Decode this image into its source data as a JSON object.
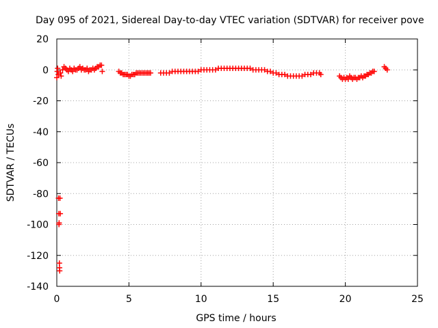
{
  "chart_data": {
    "type": "scatter",
    "title": "Day 095 of 2021, Sidereal Day-to-day VTEC variation (SDTVAR) for receiver pove",
    "xlabel": "GPS time / hours",
    "ylabel": "SDTVAR / TECUs",
    "xlim": [
      0,
      25
    ],
    "ylim": [
      -140,
      20
    ],
    "xticks": [
      0,
      5,
      10,
      15,
      20,
      25
    ],
    "yticks": [
      -140,
      -120,
      -100,
      -80,
      -60,
      -40,
      -20,
      0,
      20
    ],
    "grid": true,
    "marker": "+",
    "colors": {
      "series": "#ff0000",
      "grid": "#a0a0a0",
      "axis": "#000000"
    },
    "series": [
      {
        "name": "SDTVAR",
        "points": [
          [
            0.0,
            -5
          ],
          [
            0.03,
            -1
          ],
          [
            0.06,
            1
          ],
          [
            0.1,
            -3
          ],
          [
            0.12,
            -83
          ],
          [
            0.14,
            -93
          ],
          [
            0.15,
            -100
          ],
          [
            0.16,
            -99
          ],
          [
            0.18,
            -125
          ],
          [
            0.19,
            -128
          ],
          [
            0.2,
            -130
          ],
          [
            0.22,
            -83
          ],
          [
            0.24,
            -93
          ],
          [
            0.25,
            -2
          ],
          [
            0.3,
            -4
          ],
          [
            0.4,
            0
          ],
          [
            0.5,
            2
          ],
          [
            0.6,
            1
          ],
          [
            0.7,
            0
          ],
          [
            0.8,
            -1
          ],
          [
            0.9,
            1
          ],
          [
            1.0,
            0
          ],
          [
            1.1,
            -1
          ],
          [
            1.2,
            1
          ],
          [
            1.3,
            0
          ],
          [
            1.4,
            0
          ],
          [
            1.5,
            1
          ],
          [
            1.6,
            2
          ],
          [
            1.7,
            0
          ],
          [
            1.8,
            1
          ],
          [
            1.9,
            0
          ],
          [
            2.0,
            0
          ],
          [
            2.1,
            1
          ],
          [
            2.2,
            -1
          ],
          [
            2.3,
            0
          ],
          [
            2.4,
            0
          ],
          [
            2.5,
            1
          ],
          [
            2.6,
            0
          ],
          [
            2.7,
            1
          ],
          [
            2.8,
            2
          ],
          [
            2.9,
            2
          ],
          [
            3.0,
            3
          ],
          [
            3.1,
            3
          ],
          [
            3.15,
            -1
          ],
          [
            4.3,
            -1
          ],
          [
            4.4,
            -2
          ],
          [
            4.5,
            -2
          ],
          [
            4.6,
            -3
          ],
          [
            4.7,
            -3
          ],
          [
            4.8,
            -3
          ],
          [
            4.9,
            -3
          ],
          [
            5.0,
            -4
          ],
          [
            5.1,
            -4
          ],
          [
            5.2,
            -3
          ],
          [
            5.3,
            -3
          ],
          [
            5.4,
            -3
          ],
          [
            5.5,
            -2
          ],
          [
            5.6,
            -2
          ],
          [
            5.7,
            -2
          ],
          [
            5.8,
            -2
          ],
          [
            5.9,
            -2
          ],
          [
            6.0,
            -2
          ],
          [
            6.1,
            -2
          ],
          [
            6.2,
            -2
          ],
          [
            6.3,
            -2
          ],
          [
            6.4,
            -2
          ],
          [
            6.5,
            -2
          ],
          [
            7.2,
            -2
          ],
          [
            7.4,
            -2
          ],
          [
            7.6,
            -2
          ],
          [
            7.8,
            -2
          ],
          [
            8.0,
            -1
          ],
          [
            8.2,
            -1
          ],
          [
            8.4,
            -1
          ],
          [
            8.6,
            -1
          ],
          [
            8.8,
            -1
          ],
          [
            9.0,
            -1
          ],
          [
            9.2,
            -1
          ],
          [
            9.4,
            -1
          ],
          [
            9.6,
            -1
          ],
          [
            9.8,
            -1
          ],
          [
            10.0,
            0
          ],
          [
            10.2,
            0
          ],
          [
            10.4,
            0
          ],
          [
            10.6,
            0
          ],
          [
            10.8,
            0
          ],
          [
            11.0,
            0
          ],
          [
            11.2,
            1
          ],
          [
            11.4,
            1
          ],
          [
            11.6,
            1
          ],
          [
            11.8,
            1
          ],
          [
            12.0,
            1
          ],
          [
            12.2,
            1
          ],
          [
            12.4,
            1
          ],
          [
            12.6,
            1
          ],
          [
            12.8,
            1
          ],
          [
            13.0,
            1
          ],
          [
            13.2,
            1
          ],
          [
            13.4,
            1
          ],
          [
            13.6,
            0
          ],
          [
            13.8,
            0
          ],
          [
            14.0,
            0
          ],
          [
            14.2,
            0
          ],
          [
            14.4,
            0
          ],
          [
            14.6,
            -1
          ],
          [
            14.8,
            -1
          ],
          [
            15.0,
            -2
          ],
          [
            15.2,
            -2
          ],
          [
            15.4,
            -3
          ],
          [
            15.6,
            -3
          ],
          [
            15.8,
            -3
          ],
          [
            16.0,
            -4
          ],
          [
            16.2,
            -4
          ],
          [
            16.4,
            -4
          ],
          [
            16.6,
            -4
          ],
          [
            16.8,
            -4
          ],
          [
            17.0,
            -4
          ],
          [
            17.2,
            -3
          ],
          [
            17.4,
            -3
          ],
          [
            17.6,
            -3
          ],
          [
            17.8,
            -2
          ],
          [
            18.0,
            -2
          ],
          [
            18.2,
            -2
          ],
          [
            18.3,
            -3
          ],
          [
            19.6,
            -4
          ],
          [
            19.7,
            -5
          ],
          [
            19.8,
            -6
          ],
          [
            19.9,
            -5
          ],
          [
            20.0,
            -6
          ],
          [
            20.1,
            -5
          ],
          [
            20.2,
            -6
          ],
          [
            20.3,
            -4
          ],
          [
            20.4,
            -5
          ],
          [
            20.5,
            -6
          ],
          [
            20.6,
            -5
          ],
          [
            20.7,
            -5
          ],
          [
            20.8,
            -6
          ],
          [
            20.9,
            -5
          ],
          [
            21.0,
            -5
          ],
          [
            21.1,
            -4
          ],
          [
            21.2,
            -5
          ],
          [
            21.3,
            -4
          ],
          [
            21.4,
            -4
          ],
          [
            21.5,
            -3
          ],
          [
            21.6,
            -3
          ],
          [
            21.7,
            -2
          ],
          [
            21.8,
            -2
          ],
          [
            21.9,
            -1
          ],
          [
            22.0,
            -1
          ],
          [
            22.7,
            2
          ],
          [
            22.8,
            1
          ],
          [
            22.9,
            0
          ]
        ]
      }
    ]
  }
}
